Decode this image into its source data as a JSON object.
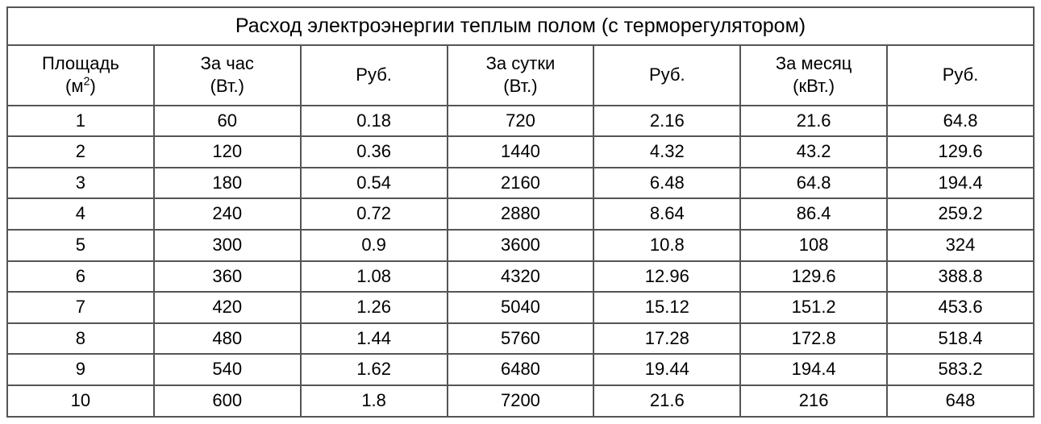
{
  "table": {
    "type": "table",
    "title": "Расход электроэнергии теплым полом (с терморегулятором)",
    "background_color": "#ffffff",
    "border_color": "#555555",
    "text_color": "#000000",
    "title_fontsize": 25,
    "header_fontsize": 22,
    "body_fontsize": 22,
    "columns": [
      {
        "label_line1": "Площадь",
        "label_line2_pre": "(м",
        "label_line2_sup": "2",
        "label_line2_post": ")"
      },
      {
        "label_line1": "За час",
        "label_line2": "(Вт.)"
      },
      {
        "label": "Руб."
      },
      {
        "label_line1": "За сутки",
        "label_line2": "(Вт.)"
      },
      {
        "label": "Руб."
      },
      {
        "label_line1": "За месяц",
        "label_line2": "(кВт.)"
      },
      {
        "label": "Руб."
      }
    ],
    "rows": [
      [
        "1",
        "60",
        "0.18",
        "720",
        "2.16",
        "21.6",
        "64.8"
      ],
      [
        "2",
        "120",
        "0.36",
        "1440",
        "4.32",
        "43.2",
        "129.6"
      ],
      [
        "3",
        "180",
        "0.54",
        "2160",
        "6.48",
        "64.8",
        "194.4"
      ],
      [
        "4",
        "240",
        "0.72",
        "2880",
        "8.64",
        "86.4",
        "259.2"
      ],
      [
        "5",
        "300",
        "0.9",
        "3600",
        "10.8",
        "108",
        "324"
      ],
      [
        "6",
        "360",
        "1.08",
        "4320",
        "12.96",
        "129.6",
        "388.8"
      ],
      [
        "7",
        "420",
        "1.26",
        "5040",
        "15.12",
        "151.2",
        "453.6"
      ],
      [
        "8",
        "480",
        "1.44",
        "5760",
        "17.28",
        "172.8",
        "518.4"
      ],
      [
        "9",
        "540",
        "1.62",
        "6480",
        "19.44",
        "194.4",
        "583.2"
      ],
      [
        "10",
        "600",
        "1.8",
        "7200",
        "21.6",
        "216",
        "648"
      ]
    ]
  }
}
